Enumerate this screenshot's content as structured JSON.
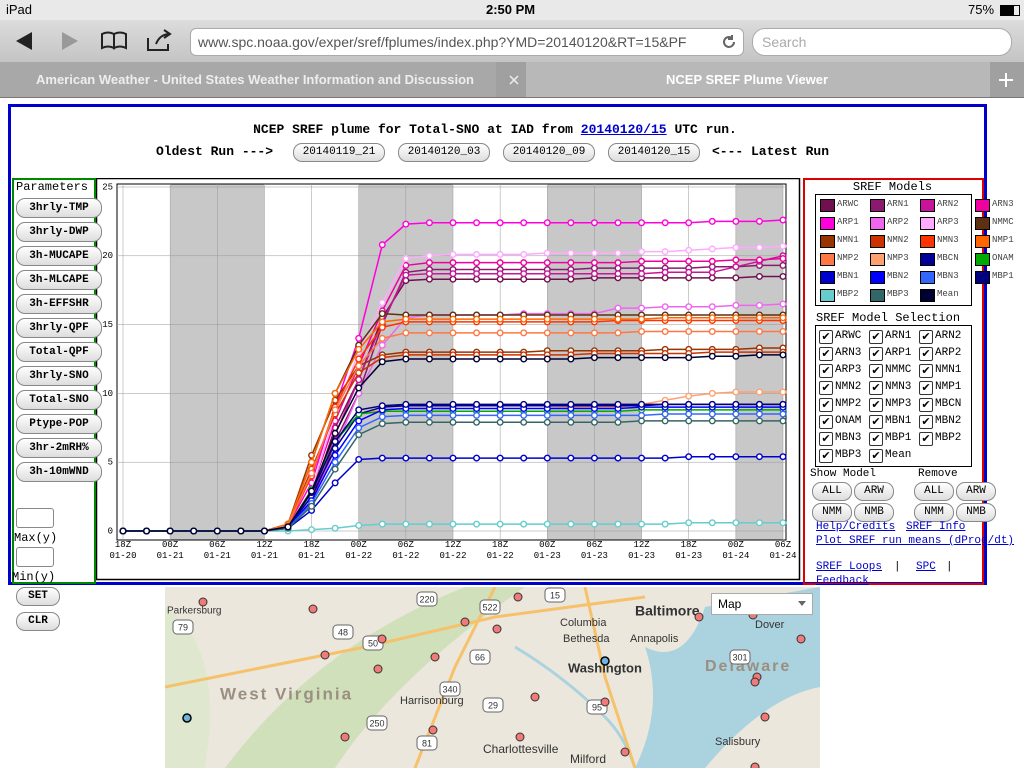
{
  "status_bar": {
    "device": "iPad",
    "time": "2:50 PM",
    "battery": "75%"
  },
  "browser": {
    "url": "www.spc.noaa.gov/exper/sref/fplumes/index.php?YMD=20140120&RT=15&PF",
    "search_placeholder": "Search",
    "tabs": [
      "American Weather - United States Weather Information and Discussion",
      "NCEP SREF Plume Viewer"
    ]
  },
  "header": {
    "title_prefix": "NCEP SREF plume for Total-SNO at IAD from",
    "run_link": "20140120/15",
    "title_suffix": "UTC run.",
    "oldest_label": "Oldest Run --->",
    "runs": [
      "20140119_21",
      "20140120_03",
      "20140120_09",
      "20140120_15"
    ],
    "latest_label": "<--- Latest Run"
  },
  "parameters": {
    "heading": "Parameters",
    "buttons": [
      "3hrly-TMP",
      "3hrly-DWP",
      "3h-MUCAPE",
      "3h-MLCAPE",
      "3h-EFFSHR",
      "3hrly-QPF",
      "Total-QPF",
      "3hrly-SNO",
      "Total-SNO",
      "Ptype-POP",
      "3hr-2mRH%",
      "3h-10mWND"
    ],
    "max_label": "Max(y)",
    "min_label": "Min(y)",
    "set": "SET",
    "clear": "CLR"
  },
  "chart_data": {
    "type": "line",
    "legend_title": "SREF Models",
    "categories": [
      [
        "18Z",
        "01-20"
      ],
      null,
      [
        "00Z",
        "01-21"
      ],
      null,
      [
        "06Z",
        "01-21"
      ],
      null,
      [
        "12Z",
        "01-21"
      ],
      null,
      [
        "18Z",
        "01-21"
      ],
      null,
      [
        "00Z",
        "01-22"
      ],
      null,
      [
        "06Z",
        "01-22"
      ],
      null,
      [
        "12Z",
        "01-22"
      ],
      null,
      [
        "18Z",
        "01-22"
      ],
      null,
      [
        "00Z",
        "01-23"
      ],
      null,
      [
        "06Z",
        "01-23"
      ],
      null,
      [
        "12Z",
        "01-23"
      ],
      null,
      [
        "18Z",
        "01-23"
      ],
      null,
      [
        "00Z",
        "01-24"
      ],
      null,
      [
        "06Z",
        "01-24"
      ]
    ],
    "ylim": [
      0,
      25
    ],
    "yticks": [
      0,
      5,
      10,
      15,
      20,
      25
    ],
    "grid": true,
    "night_shading": [
      [
        2,
        6
      ],
      [
        10,
        14
      ],
      [
        18,
        22
      ],
      [
        26,
        28
      ]
    ],
    "series": [
      {
        "name": "ARWC",
        "color": "#70104f",
        "values": [
          0,
          0,
          0,
          0,
          0,
          0,
          0,
          0.3,
          2.5,
          7.5,
          11,
          15.5,
          18.2,
          18.3,
          18.3,
          18.3,
          18.3,
          18.3,
          18.3,
          18.3,
          18.4,
          18.4,
          18.4,
          18.4,
          18.4,
          18.4,
          18.4,
          18.5,
          18.5
        ]
      },
      {
        "name": "ARN1",
        "color": "#8b1a6e",
        "values": [
          0,
          0,
          0,
          0,
          0,
          0,
          0,
          0.2,
          2,
          6.5,
          10,
          15,
          18.8,
          19,
          19,
          19,
          19,
          19,
          19,
          19,
          19.1,
          19.1,
          19.1,
          19.1,
          19.1,
          19.2,
          19.2,
          19.3,
          19.3
        ]
      },
      {
        "name": "ARN2",
        "color": "#c8149b",
        "values": [
          0,
          0,
          0,
          0,
          0,
          0,
          0,
          0.2,
          2.2,
          7,
          11,
          15.2,
          18.6,
          18.7,
          18.7,
          18.7,
          18.7,
          18.7,
          18.7,
          18.7,
          18.7,
          18.7,
          18.7,
          18.8,
          18.8,
          18.8,
          19.2,
          19.6,
          20
        ]
      },
      {
        "name": "ARN3",
        "color": "#f000a0",
        "values": [
          0,
          0,
          0,
          0,
          0,
          0,
          0,
          0.3,
          3,
          8,
          12,
          16,
          19.3,
          19.5,
          19.5,
          19.5,
          19.5,
          19.5,
          19.5,
          19.5,
          19.5,
          19.5,
          19.6,
          19.6,
          19.6,
          19.6,
          19.7,
          19.7,
          19.8
        ]
      },
      {
        "name": "ARP1",
        "color": "#ff00dd",
        "values": [
          0,
          0,
          0,
          0,
          0,
          0,
          0,
          0.4,
          3.5,
          9,
          14,
          20.8,
          22.3,
          22.4,
          22.4,
          22.4,
          22.4,
          22.4,
          22.4,
          22.4,
          22.4,
          22.4,
          22.4,
          22.4,
          22.4,
          22.5,
          22.5,
          22.5,
          22.6
        ]
      },
      {
        "name": "ARP2",
        "color": "#ee66ee",
        "values": [
          0,
          0,
          0,
          0,
          0,
          0,
          0,
          0.2,
          2,
          6,
          10,
          13.5,
          15.5,
          15.7,
          15.7,
          15.7,
          15.7,
          15.8,
          15.8,
          15.8,
          15.8,
          16.2,
          16.2,
          16.3,
          16.3,
          16.3,
          16.4,
          16.4,
          16.5
        ]
      },
      {
        "name": "ARP3",
        "color": "#ffaaff",
        "values": [
          0,
          0,
          0,
          0,
          0,
          0,
          0,
          0.3,
          3,
          8.5,
          13,
          16.6,
          19.8,
          20,
          20.1,
          20.1,
          20.1,
          20.1,
          20.2,
          20.2,
          20.2,
          20.2,
          20.3,
          20.3,
          20.4,
          20.5,
          20.6,
          20.6,
          20.7
        ]
      },
      {
        "name": "NMMC",
        "color": "#5c3010",
        "values": [
          0,
          0,
          0,
          0,
          0,
          0,
          0,
          0.5,
          5,
          10,
          13.5,
          15.8,
          15.7,
          15.7,
          15.7,
          15.7,
          15.7,
          15.7,
          15.7,
          15.7,
          15.7,
          15.7,
          15.7,
          15.7,
          15.7,
          15.7,
          15.7,
          15.7,
          15.7
        ]
      },
      {
        "name": "NMN1",
        "color": "#993300",
        "values": [
          0,
          0,
          0,
          0,
          0,
          0,
          0,
          0.5,
          5.5,
          9.5,
          12,
          12.8,
          13,
          13,
          13,
          13,
          13,
          13,
          13.1,
          13.1,
          13.1,
          13.1,
          13.1,
          13.2,
          13.2,
          13.2,
          13.2,
          13.3,
          13.3
        ]
      },
      {
        "name": "NMN2",
        "color": "#cc3300",
        "values": [
          0,
          0,
          0,
          0,
          0,
          0,
          0,
          0.4,
          4.5,
          8.5,
          11.5,
          12.6,
          12.8,
          12.8,
          12.8,
          12.8,
          12.8,
          12.8,
          12.8,
          12.8,
          12.9,
          12.9,
          12.9,
          12.9,
          12.9,
          13,
          13,
          13,
          13
        ]
      },
      {
        "name": "NMN3",
        "color": "#ff3300",
        "values": [
          0,
          0,
          0,
          0,
          0,
          0,
          0,
          0.4,
          4,
          9,
          12.5,
          14.8,
          15.2,
          15.2,
          15.2,
          15.2,
          15.2,
          15.2,
          15.2,
          15.2,
          15.2,
          15.3,
          15.3,
          15.3,
          15.3,
          15.3,
          15.3,
          15.3,
          15.3
        ]
      },
      {
        "name": "NMP1",
        "color": "#ff6600",
        "values": [
          0,
          0,
          0,
          0,
          0,
          0,
          0,
          0.5,
          5,
          10,
          13.2,
          15.2,
          15.4,
          15.4,
          15.4,
          15.4,
          15.4,
          15.4,
          15.4,
          15.4,
          15.4,
          15.4,
          15.4,
          15.5,
          15.5,
          15.5,
          15.5,
          15.5,
          15.5
        ]
      },
      {
        "name": "NMP2",
        "color": "#ff7744",
        "values": [
          0,
          0,
          0,
          0,
          0,
          0,
          0,
          0.4,
          4.2,
          8.8,
          12,
          14,
          14.4,
          14.4,
          14.4,
          14.4,
          14.4,
          14.4,
          14.4,
          14.4,
          14.4,
          14.4,
          14.5,
          14.5,
          14.5,
          14.5,
          14.5,
          14.5,
          14.5
        ]
      },
      {
        "name": "NMP3",
        "color": "#ffa070",
        "values": [
          0,
          0,
          0,
          0,
          0,
          0,
          0,
          0.3,
          3,
          6.5,
          8.5,
          8.8,
          8.9,
          8.9,
          8.9,
          8.9,
          8.9,
          8.9,
          8.9,
          9,
          9,
          9,
          9.2,
          9.5,
          9.8,
          10,
          10.1,
          10.1,
          10.1
        ]
      },
      {
        "name": "MBCN",
        "color": "#000099",
        "values": [
          0,
          0,
          0,
          0,
          0,
          0,
          0,
          0.3,
          2.5,
          6,
          8.5,
          9,
          9.1,
          9.1,
          9.1,
          9.1,
          9.1,
          9.1,
          9.1,
          9.1,
          9.1,
          9.1,
          9.1,
          9.2,
          9.2,
          9.2,
          9.2,
          9.2,
          9.2
        ]
      },
      {
        "name": "ONAM",
        "color": "#00aa00",
        "values": [
          0,
          0,
          0,
          0,
          0,
          0,
          0,
          0.3,
          3,
          6.5,
          8.5,
          8.7,
          8.7,
          8.7,
          8.7,
          8.7,
          8.7,
          8.7,
          8.7,
          8.7,
          8.7,
          8.7,
          8.8,
          8.8,
          8.8,
          8.8,
          8.8,
          8.8,
          8.8
        ]
      },
      {
        "name": "MBN1",
        "color": "#0000cc",
        "values": [
          0,
          0,
          0,
          0,
          0,
          0,
          0,
          0.2,
          1.5,
          3.5,
          5.2,
          5.3,
          5.3,
          5.3,
          5.3,
          5.3,
          5.3,
          5.3,
          5.3,
          5.3,
          5.3,
          5.3,
          5.3,
          5.3,
          5.4,
          5.4,
          5.4,
          5.4,
          5.4
        ]
      },
      {
        "name": "MBN2",
        "color": "#0000ff",
        "values": [
          0,
          0,
          0,
          0,
          0,
          0,
          0,
          0.3,
          2.2,
          5.5,
          8,
          8.8,
          8.9,
          8.9,
          8.9,
          8.9,
          8.9,
          8.9,
          8.9,
          8.9,
          8.9,
          8.9,
          9,
          9,
          9,
          9,
          9,
          9,
          9
        ]
      },
      {
        "name": "MBN3",
        "color": "#3366ff",
        "values": [
          0,
          0,
          0,
          0,
          0,
          0,
          0,
          0.2,
          2,
          5,
          7.5,
          8.3,
          8.4,
          8.4,
          8.4,
          8.4,
          8.4,
          8.4,
          8.4,
          8.4,
          8.4,
          8.4,
          8.4,
          8.5,
          8.5,
          8.5,
          8.5,
          8.5,
          8.5
        ]
      },
      {
        "name": "MBP1",
        "color": "#000080",
        "values": [
          0,
          0,
          0,
          0,
          0,
          0,
          0,
          0.3,
          2.8,
          6.5,
          8.8,
          9.1,
          9.2,
          9.2,
          9.2,
          9.2,
          9.2,
          9.2,
          9.2,
          9.2,
          9.2,
          9.2,
          9.2,
          9.2,
          9.2,
          9.2,
          9.2,
          9.2,
          9.2
        ]
      },
      {
        "name": "MBP2",
        "color": "#66cccc",
        "values": [
          0,
          0,
          0,
          0,
          0,
          0,
          0,
          0,
          0.1,
          0.2,
          0.4,
          0.5,
          0.5,
          0.5,
          0.5,
          0.5,
          0.5,
          0.5,
          0.5,
          0.5,
          0.5,
          0.5,
          0.5,
          0.5,
          0.6,
          0.6,
          0.6,
          0.6,
          0.6
        ]
      },
      {
        "name": "MBP3",
        "color": "#336666",
        "values": [
          0,
          0,
          0,
          0,
          0,
          0,
          0,
          0.2,
          1.8,
          4.5,
          7,
          7.8,
          7.9,
          7.9,
          7.9,
          7.9,
          7.9,
          7.9,
          7.9,
          7.9,
          7.9,
          7.9,
          8,
          8,
          8,
          8,
          8,
          8,
          8
        ]
      },
      {
        "name": "Mean",
        "color": "#000033",
        "values": [
          0,
          0,
          0,
          0,
          0,
          0,
          0,
          0.3,
          2.9,
          7.1,
          10.4,
          12.3,
          12.5,
          12.5,
          12.5,
          12.5,
          12.5,
          12.5,
          12.5,
          12.5,
          12.6,
          12.6,
          12.6,
          12.6,
          12.6,
          12.7,
          12.7,
          12.8,
          12.8
        ]
      }
    ]
  },
  "model_selection": {
    "heading": "SREF Model Selection",
    "show_label": "Show Model",
    "remove_label": "Remove",
    "show_buttons": [
      "ALL",
      "ARW",
      "NMM",
      "NMB"
    ],
    "remove_buttons": [
      "ALL",
      "ARW",
      "NMM",
      "NMB"
    ]
  },
  "links": {
    "items": [
      "Help/Credits",
      "SREF Info",
      "Plot SREF run means (dProg/dt)",
      "SREF Loops",
      "SPC",
      "Feedback"
    ],
    "separator": "|"
  },
  "map": {
    "type_menu": "Map",
    "labels": [
      "Parkersburg",
      "Baltimore",
      "Columbia",
      "Bethesda",
      "Annapolis",
      "Washington",
      "Dover",
      "Delaware",
      "West Virginia",
      "Harrisonburg",
      "Charlottesville",
      "Milford",
      "Salisbury"
    ],
    "roads": [
      "79",
      "220",
      "522",
      "50",
      "15",
      "48",
      "29",
      "66",
      "250",
      "81",
      "95",
      "340",
      "301"
    ]
  }
}
